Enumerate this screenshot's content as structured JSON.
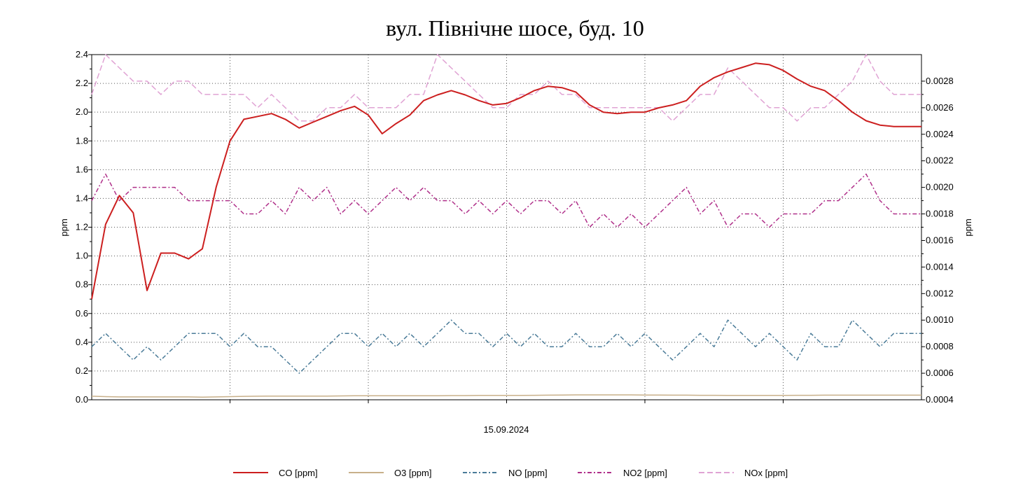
{
  "chart_data": {
    "type": "line",
    "title": "вул. Північне шосе, буд. 10",
    "xlabel": "15.09.2024",
    "ylabel_left": "ppm",
    "ylabel_right": "ppm",
    "ylim_left": [
      0,
      2.4
    ],
    "ylim_right": [
      0.0004,
      0.003
    ],
    "yticks_left": [
      "0.0",
      "0.2",
      "0.4",
      "0.6",
      "0.8",
      "1.0",
      "1.2",
      "1.4",
      "1.6",
      "1.8",
      "2.0",
      "2.2",
      "2.4"
    ],
    "yticks_right": [
      "0.0004",
      "0.0006",
      "0.0008",
      "0.0010",
      "0.0012",
      "0.0014",
      "0.0016",
      "0.0018",
      "0.0020",
      "0.0022",
      "0.0024",
      "0.0026",
      "0.0028"
    ],
    "grid": true,
    "legend_position": "bottom",
    "x": [
      0,
      1,
      2,
      3,
      4,
      5,
      6,
      7,
      8,
      9,
      10,
      11,
      12,
      13,
      14,
      15,
      16,
      17,
      18,
      19,
      20,
      21,
      22,
      23,
      24,
      25,
      26,
      27,
      28,
      29,
      30,
      31,
      32,
      33,
      34,
      35,
      36,
      37,
      38,
      39,
      40,
      41,
      42,
      43,
      44,
      45,
      46,
      47,
      48,
      49,
      50,
      51,
      52,
      53,
      54,
      55,
      56,
      57,
      58,
      59,
      60
    ],
    "series": [
      {
        "name": "CO [ppm]",
        "axis": "left",
        "color": "#cc1f1f",
        "dash": "solid",
        "values": [
          0.7,
          1.22,
          1.42,
          1.3,
          0.76,
          1.02,
          1.02,
          0.98,
          1.05,
          1.48,
          1.8,
          1.95,
          1.97,
          1.99,
          1.95,
          1.89,
          1.93,
          1.97,
          2.01,
          2.04,
          1.98,
          1.85,
          1.92,
          1.98,
          2.08,
          2.12,
          2.15,
          2.12,
          2.08,
          2.05,
          2.06,
          2.1,
          2.15,
          2.18,
          2.17,
          2.14,
          2.05,
          2.0,
          1.99,
          2.0,
          2.0,
          2.03,
          2.05,
          2.08,
          2.18,
          2.24,
          2.28,
          2.31,
          2.34,
          2.33,
          2.29,
          2.23,
          2.18,
          2.15,
          2.08,
          2.0,
          1.94,
          1.91,
          1.9,
          1.9,
          1.9
        ]
      },
      {
        "name": "O3 [ppm]",
        "axis": "left",
        "color": "#c8b08a",
        "dash": "solid",
        "values": [
          0.025,
          0.022,
          0.02,
          0.02,
          0.02,
          0.02,
          0.02,
          0.02,
          0.018,
          0.02,
          0.022,
          0.024,
          0.025,
          0.026,
          0.026,
          0.026,
          0.026,
          0.026,
          0.027,
          0.028,
          0.028,
          0.028,
          0.028,
          0.028,
          0.028,
          0.028,
          0.029,
          0.029,
          0.03,
          0.03,
          0.03,
          0.03,
          0.031,
          0.032,
          0.033,
          0.034,
          0.034,
          0.034,
          0.034,
          0.034,
          0.033,
          0.033,
          0.032,
          0.032,
          0.031,
          0.031,
          0.03,
          0.03,
          0.03,
          0.03,
          0.03,
          0.031,
          0.031,
          0.032,
          0.032,
          0.032,
          0.032,
          0.032,
          0.032,
          0.032,
          0.032
        ]
      },
      {
        "name": "NO [ppm]",
        "axis": "right",
        "color": "#4a7b98",
        "dash": "6,3,2,3",
        "values": [
          0.0008,
          0.0009,
          0.0008,
          0.0007,
          0.0008,
          0.0007,
          0.0008,
          0.0009,
          0.0009,
          0.0009,
          0.0008,
          0.0009,
          0.0008,
          0.0008,
          0.0007,
          0.0006,
          0.0007,
          0.0008,
          0.0009,
          0.0009,
          0.0008,
          0.0009,
          0.0008,
          0.0009,
          0.0008,
          0.0009,
          0.001,
          0.0009,
          0.0009,
          0.0008,
          0.0009,
          0.0008,
          0.0009,
          0.0008,
          0.0008,
          0.0009,
          0.0008,
          0.0008,
          0.0009,
          0.0008,
          0.0009,
          0.0008,
          0.0007,
          0.0008,
          0.0009,
          0.0008,
          0.001,
          0.0009,
          0.0008,
          0.0009,
          0.0008,
          0.0007,
          0.0009,
          0.0008,
          0.0008,
          0.001,
          0.0009,
          0.0008,
          0.0009,
          0.0009,
          0.0009
        ]
      },
      {
        "name": "NO2 [ppm]",
        "axis": "right",
        "color": "#b0308a",
        "dash": "6,3,2,3",
        "values": [
          0.0019,
          0.0021,
          0.0019,
          0.002,
          0.002,
          0.002,
          0.002,
          0.0019,
          0.0019,
          0.0019,
          0.0019,
          0.0018,
          0.0018,
          0.0019,
          0.0018,
          0.002,
          0.0019,
          0.002,
          0.0018,
          0.0019,
          0.0018,
          0.0019,
          0.002,
          0.0019,
          0.002,
          0.0019,
          0.0019,
          0.0018,
          0.0019,
          0.0018,
          0.0019,
          0.0018,
          0.0019,
          0.0019,
          0.0018,
          0.0019,
          0.0017,
          0.0018,
          0.0017,
          0.0018,
          0.0017,
          0.0018,
          0.0019,
          0.002,
          0.0018,
          0.0019,
          0.0017,
          0.0018,
          0.0018,
          0.0017,
          0.0018,
          0.0018,
          0.0018,
          0.0019,
          0.0019,
          0.002,
          0.0021,
          0.0019,
          0.0018,
          0.0018,
          0.0018
        ]
      },
      {
        "name": "NOx [ppm]",
        "axis": "right",
        "color": "#e0a3d4",
        "dash": "8,4",
        "values": [
          0.0027,
          0.003,
          0.0029,
          0.0028,
          0.0028,
          0.0027,
          0.0028,
          0.0028,
          0.0027,
          0.0027,
          0.0027,
          0.0027,
          0.0026,
          0.0027,
          0.0026,
          0.0025,
          0.0025,
          0.0026,
          0.0026,
          0.0027,
          0.0026,
          0.0026,
          0.0026,
          0.0027,
          0.0027,
          0.003,
          0.0029,
          0.0028,
          0.0027,
          0.0026,
          0.0026,
          0.0027,
          0.0027,
          0.0028,
          0.0027,
          0.0027,
          0.0026,
          0.0026,
          0.0026,
          0.0026,
          0.0026,
          0.0026,
          0.0025,
          0.0026,
          0.0027,
          0.0027,
          0.0029,
          0.0028,
          0.0027,
          0.0026,
          0.0026,
          0.0025,
          0.0026,
          0.0026,
          0.0027,
          0.0028,
          0.003,
          0.0028,
          0.0027,
          0.0027,
          0.0027
        ]
      }
    ]
  }
}
